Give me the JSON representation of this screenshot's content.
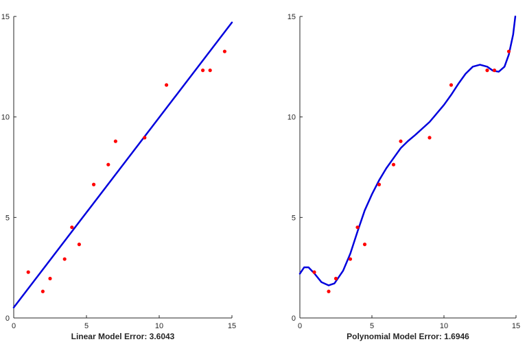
{
  "chart_data": [
    {
      "type": "scatter",
      "title": "",
      "xlabel": "Linear Model Error:   3.6043",
      "ylabel": "",
      "xlim": [
        0,
        15
      ],
      "ylim": [
        0,
        15
      ],
      "xticks": [
        0,
        5,
        10,
        15
      ],
      "yticks": [
        0,
        5,
        10,
        15
      ],
      "grid": false,
      "colors": {
        "points": "#ff0000",
        "fit": "#0000dd",
        "axis": "#262626"
      },
      "points": {
        "x": [
          1,
          2,
          2.5,
          3.5,
          4,
          4.5,
          5.5,
          6.5,
          7,
          9,
          10.5,
          13,
          13.5,
          14.5
        ],
        "y": [
          2.28,
          1.32,
          1.96,
          2.93,
          4.51,
          3.66,
          6.64,
          7.63,
          8.79,
          8.97,
          11.59,
          12.32,
          12.32,
          13.26
        ]
      },
      "fit": {
        "type": "linear",
        "x": [
          0,
          15
        ],
        "y": [
          0.52,
          14.7
        ]
      }
    },
    {
      "type": "scatter",
      "title": "",
      "xlabel": "Polynomial Model Error: 1.6946",
      "ylabel": "",
      "xlim": [
        0,
        15
      ],
      "ylim": [
        0,
        15
      ],
      "xticks": [
        0,
        5,
        10,
        15
      ],
      "yticks": [
        0,
        5,
        10,
        15
      ],
      "grid": false,
      "colors": {
        "points": "#ff0000",
        "fit": "#0000dd",
        "axis": "#262626"
      },
      "points": {
        "x": [
          1,
          2,
          2.5,
          3.5,
          4,
          4.5,
          5.5,
          6.5,
          7,
          9,
          10.5,
          13,
          13.5,
          14.5
        ],
        "y": [
          2.28,
          1.32,
          1.96,
          2.93,
          4.51,
          3.66,
          6.64,
          7.63,
          8.79,
          8.97,
          11.59,
          12.32,
          12.32,
          13.26
        ]
      },
      "fit": {
        "type": "polynomial",
        "x": [
          0,
          0.3,
          0.6,
          1.0,
          1.5,
          2.0,
          2.4,
          3.0,
          3.5,
          4.0,
          4.5,
          5.0,
          5.5,
          6.0,
          6.5,
          7.0,
          7.5,
          8.0,
          9.0,
          10.0,
          10.5,
          11.0,
          11.5,
          12.0,
          12.5,
          13.0,
          13.4,
          13.8,
          14.2,
          14.5,
          14.8,
          14.95
        ],
        "y": [
          2.2,
          2.52,
          2.52,
          2.22,
          1.78,
          1.62,
          1.72,
          2.35,
          3.2,
          4.3,
          5.35,
          6.15,
          6.85,
          7.45,
          7.95,
          8.45,
          8.8,
          9.1,
          9.75,
          10.6,
          11.1,
          11.65,
          12.15,
          12.5,
          12.6,
          12.5,
          12.3,
          12.25,
          12.5,
          13.1,
          14.1,
          15.0
        ]
      }
    }
  ]
}
